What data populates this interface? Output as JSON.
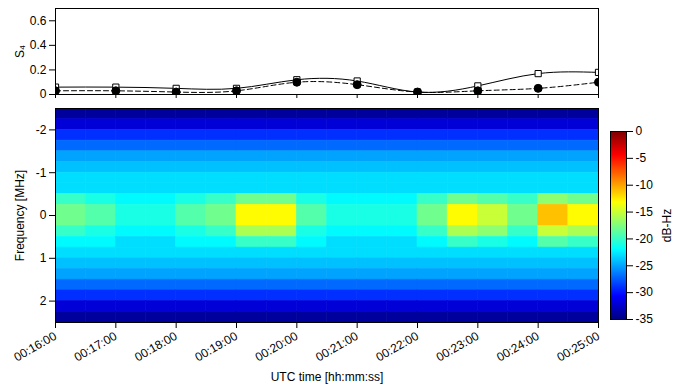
{
  "chart_data": [
    {
      "type": "line",
      "ylabel": "S₄",
      "x": [
        "00:16:00",
        "00:17:00",
        "00:18:00",
        "00:19:00",
        "00:20:00",
        "00:21:00",
        "00:22:00",
        "00:23:00",
        "00:24:00",
        "00:25:00"
      ],
      "xlim": [
        "00:16:00",
        "00:25:00"
      ],
      "xticks": [
        "00:16:00",
        "00:17:00",
        "00:18:00",
        "00:19:00",
        "00:20:00",
        "00:21:00",
        "00:22:00",
        "00:23:00",
        "00:24:00",
        "00:25:00"
      ],
      "ylim": [
        0,
        0.7
      ],
      "yticks": [
        0,
        0.2,
        0.4,
        0.6
      ],
      "tick_labels": "y",
      "series": [
        {
          "color": "#000000",
          "marker": "square-open",
          "line_style": "solid",
          "values": [
            0.06,
            0.06,
            0.05,
            0.05,
            0.12,
            0.11,
            0.02,
            0.07,
            0.17,
            0.18
          ]
        },
        {
          "color": "#000000",
          "marker": "circle-filled",
          "line_style": "dashed",
          "values": [
            0.03,
            0.03,
            0.02,
            0.03,
            0.1,
            0.08,
            0.02,
            0.03,
            0.05,
            0.1
          ]
        }
      ]
    },
    {
      "type": "heatmap",
      "xlabel": "UTC time [hh:mm:ss]",
      "ylabel": "Frequency [MHz]",
      "xlim": [
        "00:16:00",
        "00:25:00"
      ],
      "xticks": [
        "00:16:00",
        "00:17:00",
        "00:18:00",
        "00:19:00",
        "00:20:00",
        "00:21:00",
        "00:22:00",
        "00:23:00",
        "00:24:00",
        "00:25:00"
      ],
      "ylim": [
        2.5,
        -2.5
      ],
      "yticks": [
        -2,
        -1,
        0,
        1,
        2
      ],
      "x_edges": [
        "00:16:00",
        "00:16:30",
        "00:17:00",
        "00:17:30",
        "00:18:00",
        "00:18:30",
        "00:19:00",
        "00:19:30",
        "00:20:00",
        "00:20:30",
        "00:21:00",
        "00:21:30",
        "00:22:00",
        "00:22:30",
        "00:23:00",
        "00:23:30",
        "00:24:00",
        "00:24:30",
        "00:25:00"
      ],
      "y_edges": [
        -2.5,
        -2.25,
        -2,
        -1.75,
        -1.5,
        -1.25,
        -1,
        -0.75,
        -0.5,
        -0.25,
        0,
        0.25,
        0.5,
        0.75,
        1,
        1.25,
        1.5,
        1.75,
        2,
        2.25,
        2.5
      ],
      "values": [
        [
          -34,
          -34,
          -34,
          -34,
          -34,
          -34,
          -34,
          -34,
          -34,
          -34,
          -34,
          -34,
          -34,
          -34,
          -34,
          -34,
          -34,
          -34
        ],
        [
          -32,
          -32,
          -32,
          -32,
          -32,
          -32,
          -32,
          -32,
          -32,
          -32,
          -32,
          -32,
          -32,
          -32,
          -32,
          -32,
          -32,
          -32
        ],
        [
          -29,
          -29,
          -29,
          -29,
          -29,
          -29,
          -29,
          -29,
          -29,
          -29,
          -29,
          -29,
          -29,
          -29,
          -29,
          -29,
          -29,
          -29
        ],
        [
          -27,
          -27,
          -27,
          -27,
          -27,
          -27,
          -27,
          -27,
          -27,
          -27,
          -27,
          -27,
          -27,
          -27,
          -27,
          -27,
          -27,
          -27
        ],
        [
          -25,
          -25,
          -25,
          -25,
          -25,
          -25,
          -25,
          -25,
          -25,
          -25,
          -25,
          -25,
          -25,
          -25,
          -25,
          -25,
          -25,
          -25
        ],
        [
          -24,
          -24,
          -24,
          -24,
          -24,
          -24,
          -24,
          -24,
          -24,
          -24,
          -24,
          -24,
          -24,
          -24,
          -24,
          -24,
          -24,
          -24
        ],
        [
          -23,
          -23,
          -23,
          -23,
          -23,
          -23,
          -23,
          -23,
          -23,
          -23,
          -23,
          -23,
          -23,
          -23,
          -23,
          -23,
          -23,
          -23
        ],
        [
          -23,
          -23,
          -23,
          -23,
          -23,
          -23,
          -23,
          -23,
          -23,
          -23,
          -23,
          -23,
          -23,
          -23,
          -23,
          -23,
          -23,
          -23
        ],
        [
          -20,
          -21,
          -22,
          -22,
          -21,
          -20,
          -18,
          -18,
          -21,
          -22,
          -22,
          -22,
          -20,
          -18,
          -19,
          -20,
          -17,
          -18
        ],
        [
          -18,
          -19,
          -21,
          -21,
          -19,
          -18,
          -13,
          -13,
          -19,
          -21,
          -21,
          -21,
          -18,
          -13,
          -15,
          -18,
          -11,
          -13
        ],
        [
          -18,
          -19,
          -21,
          -21,
          -19,
          -18,
          -13,
          -13,
          -19,
          -21,
          -21,
          -21,
          -18,
          -13,
          -15,
          -18,
          -11,
          -13
        ],
        [
          -20,
          -21,
          -22,
          -22,
          -21,
          -20,
          -16,
          -16,
          -21,
          -22,
          -22,
          -22,
          -20,
          -16,
          -17,
          -20,
          -15,
          -16
        ],
        [
          -22,
          -22,
          -23,
          -23,
          -22,
          -22,
          -20,
          -20,
          -22,
          -23,
          -23,
          -23,
          -22,
          -20,
          -21,
          -22,
          -19,
          -20
        ],
        [
          -23,
          -23,
          -23,
          -23,
          -23,
          -23,
          -23,
          -23,
          -23,
          -23,
          -23,
          -23,
          -23,
          -23,
          -23,
          -23,
          -23,
          -23
        ],
        [
          -24,
          -24,
          -24,
          -24,
          -24,
          -24,
          -24,
          -24,
          -24,
          -24,
          -24,
          -24,
          -24,
          -24,
          -24,
          -24,
          -24,
          -24
        ],
        [
          -25,
          -25,
          -25,
          -25,
          -25,
          -25,
          -25,
          -25,
          -25,
          -25,
          -25,
          -25,
          -25,
          -25,
          -25,
          -25,
          -25,
          -25
        ],
        [
          -27,
          -27,
          -27,
          -27,
          -27,
          -27,
          -27,
          -27,
          -27,
          -27,
          -27,
          -27,
          -27,
          -27,
          -27,
          -27,
          -27,
          -27
        ],
        [
          -29,
          -29,
          -29,
          -29,
          -29,
          -29,
          -29,
          -29,
          -29,
          -29,
          -29,
          -29,
          -29,
          -29,
          -29,
          -29,
          -29,
          -29
        ],
        [
          -32,
          -32,
          -32,
          -32,
          -32,
          -32,
          -32,
          -32,
          -32,
          -32,
          -32,
          -32,
          -32,
          -32,
          -32,
          -32,
          -32,
          -32
        ],
        [
          -34,
          -34,
          -34,
          -34,
          -34,
          -34,
          -34,
          -34,
          -34,
          -34,
          -34,
          -34,
          -34,
          -34,
          -34,
          -34,
          -34,
          -34
        ]
      ],
      "colorbar": {
        "label": "dB-Hz",
        "range": [
          -35,
          0
        ],
        "ticks": [
          0,
          -5,
          -10,
          -15,
          -20,
          -25,
          -30,
          -35
        ]
      }
    }
  ]
}
